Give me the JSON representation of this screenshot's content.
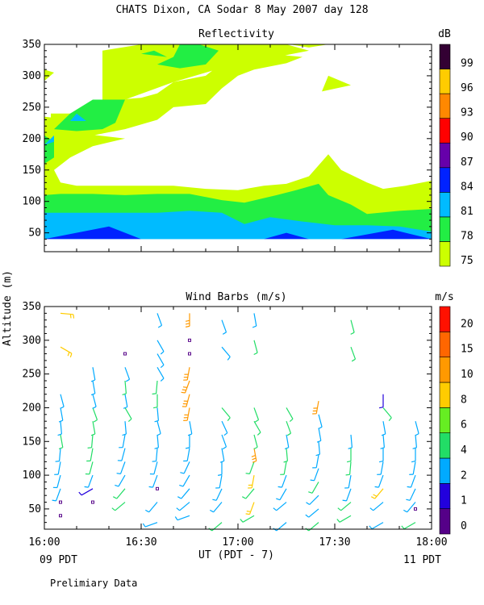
{
  "header": {
    "title": "CHATS Dixon, CA  Sodar   8 May 2007  day 128",
    "footer_note": "Prelimiary Data",
    "left_date_label": "09 PDT",
    "right_date_label": "11 PDT",
    "x_axis_label": "UT  (PDT - 7)",
    "y_axis_label": "Altitude (m)"
  },
  "chart_data": [
    {
      "type": "contour",
      "title": "Reflectivity",
      "colorbar_title": "dB",
      "xlabel": "UT  (PDT - 7)",
      "ylabel": "Altitude (m)",
      "x_ticks": [
        "16:00",
        "16:30",
        "17:00",
        "17:30",
        "18:00"
      ],
      "x_range_minutes": [
        0,
        120
      ],
      "y_ticks": [
        50,
        100,
        150,
        200,
        250,
        300,
        350
      ],
      "ylim": [
        20,
        350
      ],
      "colorbar_levels": [
        75,
        78,
        81,
        84,
        87,
        90,
        93,
        96,
        99
      ],
      "level_colors": [
        "#ccff00",
        "#22ee44",
        "#00bbff",
        "#0022ff",
        "#6600aa",
        "#ff0000",
        "#ff8800",
        "#ffcc00",
        "#330033"
      ],
      "regions": [
        {
          "level": 75,
          "approx_top_altitude_m": 350,
          "note": "patchy above 150 m, continuous below 130 m"
        },
        {
          "level": 78,
          "approx_top_altitude_m": 110,
          "note": "band 80-110 m, patches aloft near 230 m and 330 m"
        },
        {
          "level": 81,
          "approx_top_altitude_m": 85,
          "note": "band 40-85 m"
        },
        {
          "level": 84,
          "approx_top_altitude_m": 60,
          "note": "thin layers at lowest range gates"
        }
      ]
    },
    {
      "type": "wind_barbs",
      "title": "Wind Barbs (m/s)",
      "colorbar_title": "m/s",
      "xlabel": "UT  (PDT - 7)",
      "ylabel": "Altitude (m)",
      "x_ticks": [
        "16:00",
        "16:30",
        "17:00",
        "17:30",
        "18:00"
      ],
      "x_range_minutes": [
        0,
        120
      ],
      "y_ticks": [
        50,
        100,
        150,
        200,
        250,
        300,
        350
      ],
      "ylim": [
        20,
        350
      ],
      "colorbar_levels": [
        0,
        1,
        2,
        4,
        6,
        8,
        10,
        15,
        20
      ],
      "level_colors": [
        "#550088",
        "#2200dd",
        "#00aaff",
        "#22dd66",
        "#66ee22",
        "#ffcc00",
        "#ff9900",
        "#ff6600",
        "#ff1100"
      ],
      "profile_times_min": [
        5,
        15,
        25,
        35,
        45,
        55,
        65,
        75,
        85,
        95,
        105,
        115
      ],
      "altitudes_m": [
        30,
        40,
        60,
        80,
        100,
        120,
        140,
        160,
        180,
        200,
        220,
        240,
        260,
        280,
        300,
        320,
        340
      ],
      "profiles": [
        {
          "t": 5,
          "barbs": [
            [
              40,
              0.5,
              0
            ],
            [
              60,
              0.5,
              0
            ],
            [
              80,
              3,
              200
            ],
            [
              100,
              3,
              195
            ],
            [
              120,
              3,
              190
            ],
            [
              140,
              3,
              185
            ],
            [
              160,
              4,
              170
            ],
            [
              180,
              3,
              175
            ],
            [
              200,
              3,
              170
            ],
            [
              220,
              3,
              165
            ],
            [
              290,
              8,
              120
            ],
            [
              340,
              8,
              95
            ]
          ]
        },
        {
          "t": 15,
          "barbs": [
            [
              60,
              0.5,
              0
            ],
            [
              80,
              1.5,
              240
            ],
            [
              100,
              3,
              200
            ],
            [
              120,
              4,
              195
            ],
            [
              140,
              4,
              190
            ],
            [
              160,
              4,
              185
            ],
            [
              180,
              4,
              170
            ],
            [
              200,
              4,
              160
            ],
            [
              220,
              3,
              165
            ],
            [
              240,
              2,
              170
            ],
            [
              260,
              2,
              170
            ]
          ]
        },
        {
          "t": 25,
          "barbs": [
            [
              60,
              4,
              230
            ],
            [
              80,
              4,
              220
            ],
            [
              100,
              3,
              210
            ],
            [
              120,
              3,
              200
            ],
            [
              140,
              3,
              195
            ],
            [
              160,
              3,
              190
            ],
            [
              180,
              3,
              175
            ],
            [
              200,
              4,
              150
            ],
            [
              220,
              3,
              170
            ],
            [
              240,
              4,
              175
            ],
            [
              260,
              3,
              160
            ],
            [
              280,
              0.5,
              0
            ]
          ]
        },
        {
          "t": 35,
          "barbs": [
            [
              30,
              3,
              250
            ],
            [
              60,
              3,
              220
            ],
            [
              80,
              0.5,
              0
            ],
            [
              100,
              3,
              200
            ],
            [
              120,
              3,
              195
            ],
            [
              140,
              3,
              185
            ],
            [
              160,
              3,
              175
            ],
            [
              180,
              2,
              165
            ],
            [
              200,
              2,
              175
            ],
            [
              220,
              5,
              180
            ],
            [
              240,
              4,
              185
            ],
            [
              260,
              3,
              150
            ],
            [
              280,
              3,
              150
            ],
            [
              300,
              3,
              150
            ],
            [
              340,
              3,
              160
            ]
          ]
        },
        {
          "t": 45,
          "barbs": [
            [
              40,
              3,
              250
            ],
            [
              60,
              3,
              230
            ],
            [
              80,
              3,
              220
            ],
            [
              100,
              3,
              210
            ],
            [
              120,
              3,
              205
            ],
            [
              140,
              3,
              190
            ],
            [
              160,
              3,
              180
            ],
            [
              180,
              2,
              170
            ],
            [
              200,
              10,
              190
            ],
            [
              220,
              10,
              195
            ],
            [
              240,
              10,
              200
            ],
            [
              260,
              10,
              190
            ],
            [
              280,
              0.5,
              0
            ],
            [
              300,
              0.5,
              0
            ],
            [
              340,
              10,
              180
            ]
          ]
        },
        {
          "t": 55,
          "barbs": [
            [
              30,
              4,
              230
            ],
            [
              60,
              3,
              220
            ],
            [
              80,
              3,
              205
            ],
            [
              100,
              3,
              190
            ],
            [
              120,
              3,
              180
            ],
            [
              140,
              3,
              170
            ],
            [
              160,
              3,
              160
            ],
            [
              180,
              2,
              155
            ],
            [
              200,
              4,
              140
            ],
            [
              290,
              3,
              140
            ],
            [
              330,
              3,
              160
            ]
          ]
        },
        {
          "t": 65,
          "barbs": [
            [
              40,
              4,
              240
            ],
            [
              60,
              8,
              200
            ],
            [
              80,
              4,
              220
            ],
            [
              100,
              8,
              190
            ],
            [
              120,
              4,
              200
            ],
            [
              140,
              10,
              170
            ],
            [
              160,
              4,
              165
            ],
            [
              180,
              4,
              150
            ],
            [
              200,
              4,
              160
            ],
            [
              300,
              4,
              165
            ],
            [
              340,
              3,
              170
            ]
          ]
        },
        {
          "t": 75,
          "barbs": [
            [
              30,
              3,
              230
            ],
            [
              60,
              3,
              230
            ],
            [
              80,
              3,
              210
            ],
            [
              100,
              3,
              200
            ],
            [
              120,
              4,
              190
            ],
            [
              140,
              4,
              175
            ],
            [
              160,
              3,
              170
            ],
            [
              180,
              4,
              160
            ],
            [
              200,
              4,
              150
            ]
          ]
        },
        {
          "t": 85,
          "barbs": [
            [
              30,
              4,
              230
            ],
            [
              50,
              3,
              230
            ],
            [
              70,
              3,
              225
            ],
            [
              90,
              4,
              210
            ],
            [
              110,
              3,
              200
            ],
            [
              130,
              3,
              190
            ],
            [
              150,
              3,
              175
            ],
            [
              170,
              3,
              170
            ],
            [
              190,
              3,
              165
            ],
            [
              210,
              10,
              190
            ]
          ]
        },
        {
          "t": 95,
          "barbs": [
            [
              40,
              4,
              240
            ],
            [
              60,
              4,
              230
            ],
            [
              80,
              3,
              200
            ],
            [
              100,
              3,
              190
            ],
            [
              120,
              4,
              185
            ],
            [
              140,
              4,
              180
            ],
            [
              160,
              3,
              175
            ],
            [
              290,
              4,
              160
            ],
            [
              330,
              4,
              165
            ]
          ]
        },
        {
          "t": 105,
          "barbs": [
            [
              30,
              3,
              240
            ],
            [
              60,
              3,
              230
            ],
            [
              80,
              8,
              220
            ],
            [
              100,
              3,
              200
            ],
            [
              120,
              3,
              190
            ],
            [
              140,
              3,
              180
            ],
            [
              160,
              3,
              175
            ],
            [
              180,
              3,
              170
            ],
            [
              200,
              4,
              140
            ],
            [
              220,
              1.5,
              180
            ]
          ]
        },
        {
          "t": 115,
          "barbs": [
            [
              30,
              4,
              240
            ],
            [
              50,
              0.5,
              0
            ],
            [
              60,
              3,
              220
            ],
            [
              80,
              3,
              205
            ],
            [
              100,
              3,
              200
            ],
            [
              120,
              3,
              190
            ],
            [
              140,
              3,
              180
            ],
            [
              160,
              3,
              175
            ],
            [
              180,
              3,
              165
            ]
          ]
        }
      ]
    }
  ]
}
